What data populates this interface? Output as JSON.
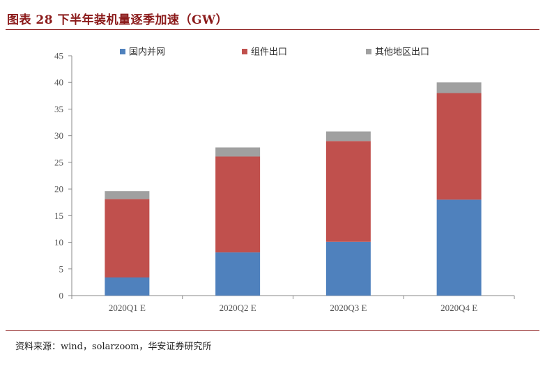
{
  "figure": {
    "title": "图表 28 下半年装机量逐季加速（GW）",
    "source": "资料来源：wind，solarzoom，华安证券研究所"
  },
  "chart_data": {
    "type": "bar",
    "stacked": true,
    "title": "",
    "xlabel": "",
    "ylabel": "",
    "categories": [
      "2020Q1 E",
      "2020Q2 E",
      "2020Q3 E",
      "2020Q4 E"
    ],
    "series": [
      {
        "name": "国内并网",
        "color": "#4f81bd",
        "values": [
          3.4,
          8.1,
          10.1,
          18.0
        ]
      },
      {
        "name": "组件出口",
        "color": "#c0504d",
        "values": [
          14.7,
          18.0,
          18.9,
          20.0
        ]
      },
      {
        "name": "其他地区出口",
        "color": "#a0a0a0",
        "values": [
          1.5,
          1.7,
          1.8,
          2.0
        ]
      }
    ],
    "ylim": [
      0,
      45
    ],
    "yticks": [
      "0",
      "5",
      "10",
      "15",
      "20",
      "25",
      "30",
      "35",
      "40",
      "45"
    ],
    "grid": false,
    "legend_position": "top"
  }
}
